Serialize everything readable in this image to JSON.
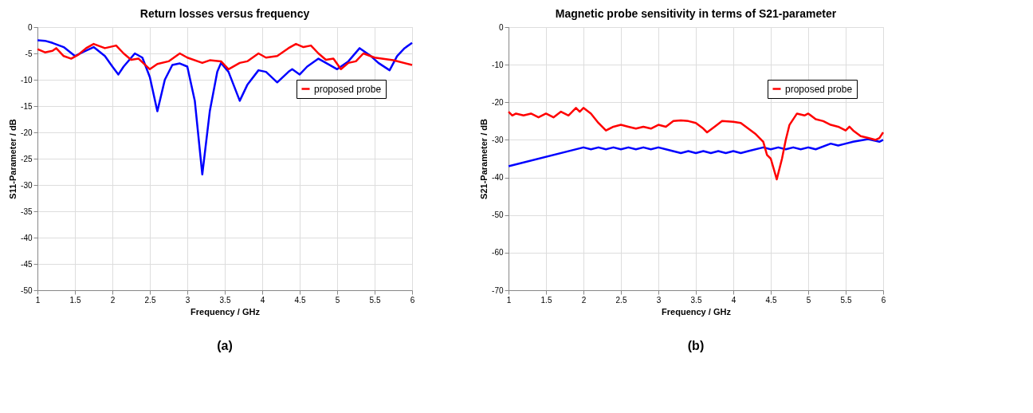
{
  "chart_data": [
    {
      "type": "line",
      "title": "Return losses versus frequency",
      "xlabel": "Frequency / GHz",
      "ylabel": "S11-Parameter / dB",
      "xlim": [
        1,
        6
      ],
      "xticks": [
        1,
        1.5,
        2,
        2.5,
        3,
        3.5,
        4,
        4.5,
        5,
        5.5,
        6
      ],
      "ylim": [
        -50,
        0
      ],
      "yticks": [
        -50,
        -45,
        -40,
        -35,
        -30,
        -25,
        -20,
        -15,
        -10,
        -5,
        0
      ],
      "grid": true,
      "legend": "top right",
      "annotations": [
        "(a)"
      ],
      "series": [
        {
          "color": "#0000ff",
          "x": [
            1.0,
            1.1,
            1.2,
            1.35,
            1.5,
            1.6,
            1.75,
            1.9,
            2.0,
            2.08,
            2.15,
            2.3,
            2.4,
            2.5,
            2.6,
            2.7,
            2.8,
            2.9,
            3.0,
            3.1,
            3.2,
            3.3,
            3.4,
            3.45,
            3.55,
            3.7,
            3.8,
            3.95,
            4.05,
            4.2,
            4.35,
            4.4,
            4.5,
            4.6,
            4.75,
            4.85,
            5.0,
            5.15,
            5.3,
            5.45,
            5.55,
            5.7,
            5.8,
            5.9,
            6.0
          ],
          "values": [
            -2.5,
            -2.6,
            -3.0,
            -3.8,
            -5.5,
            -4.8,
            -3.8,
            -5.5,
            -7.5,
            -9.0,
            -7.5,
            -5.0,
            -5.8,
            -9.5,
            -16.0,
            -10,
            -7.2,
            -6.9,
            -7.5,
            -14,
            -28,
            -16,
            -8.5,
            -6.8,
            -8.5,
            -14,
            -11,
            -8.2,
            -8.5,
            -10.5,
            -8.5,
            -8.0,
            -9.0,
            -7.5,
            -6.0,
            -6.8,
            -8.0,
            -6.5,
            -4.0,
            -5.5,
            -6.8,
            -8.2,
            -5.5,
            -4.0,
            -3.0
          ]
        },
        {
          "name": "proposed probe",
          "color": "#ff0000",
          "x": [
            1.0,
            1.1,
            1.2,
            1.25,
            1.35,
            1.45,
            1.55,
            1.65,
            1.75,
            1.9,
            2.05,
            2.15,
            2.25,
            2.35,
            2.5,
            2.6,
            2.75,
            2.9,
            3.0,
            3.2,
            3.3,
            3.45,
            3.55,
            3.7,
            3.8,
            3.95,
            4.05,
            4.2,
            4.35,
            4.45,
            4.55,
            4.65,
            4.75,
            4.85,
            4.95,
            5.05,
            5.15,
            5.25,
            5.35,
            5.5,
            5.75,
            6.0
          ],
          "values": [
            -4.2,
            -4.8,
            -4.5,
            -4.0,
            -5.5,
            -6.0,
            -5.2,
            -4.0,
            -3.2,
            -4.0,
            -3.5,
            -5.0,
            -6.2,
            -6.0,
            -8.0,
            -7.0,
            -6.5,
            -5.0,
            -5.8,
            -6.8,
            -6.3,
            -6.5,
            -8.0,
            -6.8,
            -6.5,
            -5.0,
            -5.8,
            -5.5,
            -4.0,
            -3.2,
            -3.8,
            -3.5,
            -5.0,
            -6.2,
            -6.0,
            -8.0,
            -6.8,
            -6.5,
            -5.0,
            -5.8,
            -6.3,
            -7.2
          ]
        }
      ]
    },
    {
      "type": "line",
      "title": "Magnetic probe sensitivity in terms of S21-parameter",
      "xlabel": "Frequency / GHz",
      "ylabel": "S21-Parameter / dB",
      "xlim": [
        1,
        6
      ],
      "xticks": [
        1,
        1.5,
        2,
        2.5,
        3,
        3.5,
        4,
        4.5,
        5,
        5.5,
        6
      ],
      "ylim": [
        -70,
        0
      ],
      "yticks": [
        -70,
        -60,
        -50,
        -40,
        -30,
        -20,
        -10,
        0
      ],
      "grid": true,
      "legend": "top right",
      "annotations": [
        "(b)"
      ],
      "series": [
        {
          "color": "#0000ff",
          "x": [
            1.0,
            2.0,
            2.1,
            2.2,
            2.3,
            2.4,
            2.5,
            2.6,
            2.7,
            2.8,
            2.9,
            3.0,
            3.1,
            3.3,
            3.4,
            3.5,
            3.6,
            3.7,
            3.8,
            3.9,
            4.0,
            4.1,
            4.2,
            4.4,
            4.5,
            4.6,
            4.7,
            4.8,
            4.9,
            5.0,
            5.1,
            5.3,
            5.4,
            5.5,
            5.6,
            5.8,
            5.95,
            6.0
          ],
          "values": [
            -37,
            -32,
            -32.5,
            -32,
            -32.5,
            -32,
            -32.5,
            -32,
            -32.5,
            -32,
            -32.5,
            -32,
            -32.5,
            -33.5,
            -33,
            -33.5,
            -33,
            -33.5,
            -33,
            -33.5,
            -33,
            -33.5,
            -33,
            -32,
            -32.5,
            -32,
            -32.5,
            -32,
            -32.5,
            -32,
            -32.5,
            -31,
            -31.5,
            -31,
            -30.5,
            -29.8,
            -30.5,
            -30
          ]
        },
        {
          "name": "proposed probe",
          "color": "#ff0000",
          "x": [
            1.0,
            1.05,
            1.1,
            1.2,
            1.3,
            1.4,
            1.5,
            1.6,
            1.7,
            1.8,
            1.9,
            1.95,
            2.0,
            2.1,
            2.2,
            2.3,
            2.4,
            2.5,
            2.6,
            2.7,
            2.8,
            2.9,
            3.0,
            3.1,
            3.2,
            3.3,
            3.4,
            3.5,
            3.6,
            3.65,
            3.75,
            3.85,
            4.0,
            4.1,
            4.2,
            4.3,
            4.4,
            4.45,
            4.5,
            4.58,
            4.65,
            4.7,
            4.75,
            4.85,
            4.95,
            5.0,
            5.1,
            5.2,
            5.3,
            5.4,
            5.5,
            5.55,
            5.6,
            5.7,
            5.8,
            5.9,
            5.95,
            6.0
          ],
          "values": [
            -22.5,
            -23.5,
            -23,
            -23.5,
            -23,
            -24,
            -23,
            -24,
            -22.5,
            -23.5,
            -21.5,
            -22.5,
            -21.5,
            -23,
            -25.5,
            -27.5,
            -26.5,
            -26,
            -26.5,
            -27,
            -26.5,
            -27,
            -26,
            -26.5,
            -25,
            -24.8,
            -25,
            -25.5,
            -27,
            -28,
            -26.5,
            -25,
            -25.2,
            -25.5,
            -27,
            -28.5,
            -30.5,
            -34,
            -35,
            -40.5,
            -35,
            -30,
            -26,
            -23,
            -23.5,
            -23,
            -24.5,
            -25,
            -26,
            -26.5,
            -27.5,
            -26.5,
            -27.5,
            -29,
            -29.5,
            -30,
            -29.5,
            -28
          ]
        }
      ]
    }
  ]
}
